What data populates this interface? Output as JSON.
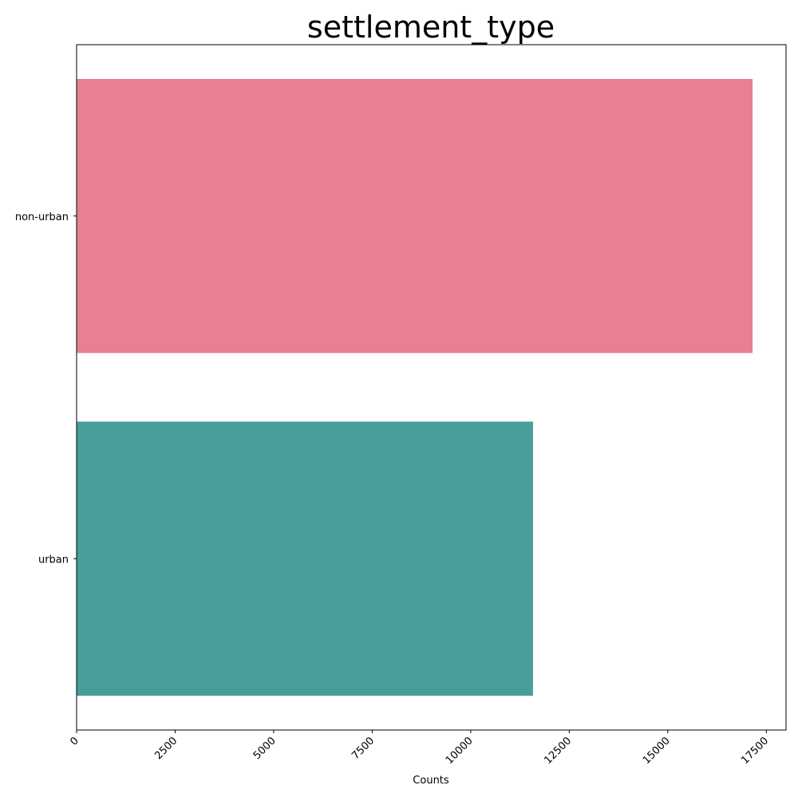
{
  "chart_data": {
    "type": "bar",
    "orientation": "horizontal",
    "title": "settlement_type",
    "xlabel": "Counts",
    "ylabel": "",
    "categories": [
      "non-urban",
      "urban"
    ],
    "values": [
      17150,
      11580
    ],
    "colors": [
      "#e78192",
      "#479e98"
    ],
    "xlim": [
      0,
      18000
    ],
    "xticks": [
      0,
      2500,
      5000,
      7500,
      10000,
      12500,
      15000,
      17500
    ],
    "xtick_labels": [
      "0",
      "2500",
      "5000",
      "7500",
      "10000",
      "12500",
      "15000",
      "17500"
    ],
    "grid": false,
    "legend": "none"
  }
}
